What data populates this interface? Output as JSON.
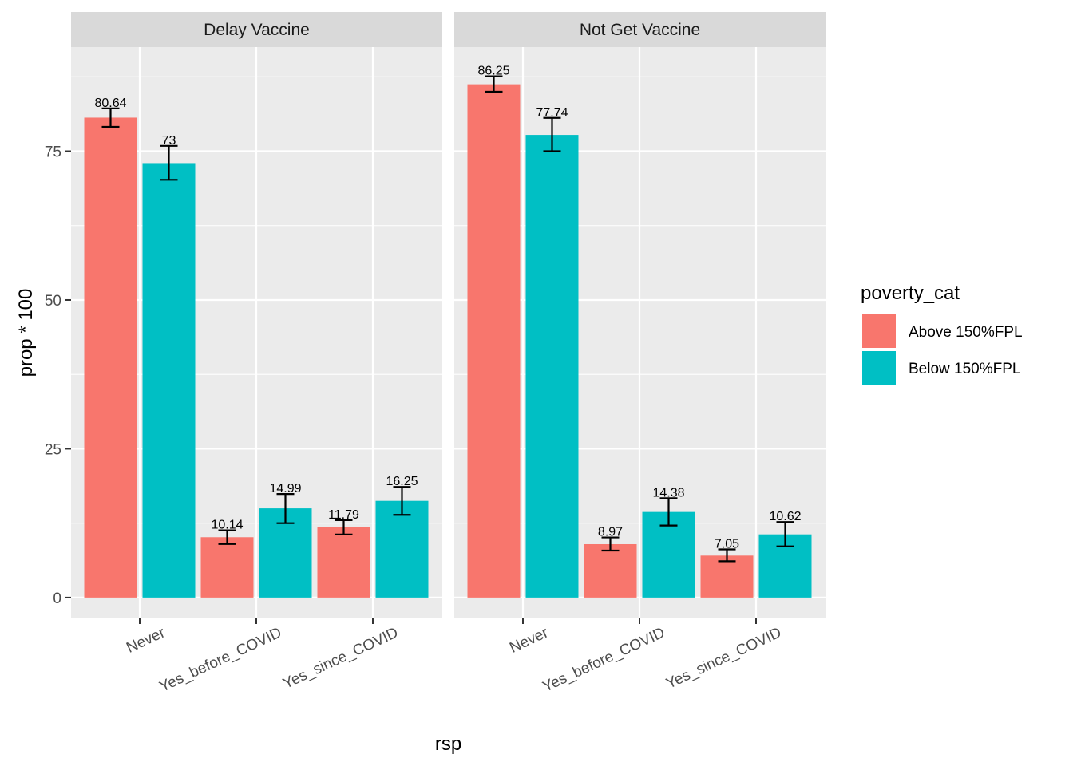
{
  "chart_data": {
    "type": "bar",
    "xlabel": "rsp",
    "ylabel": "prop * 100",
    "ylim": [
      -3.5,
      92.5
    ],
    "yticks": [
      0,
      25,
      50,
      75
    ],
    "categories": [
      "Never",
      "Yes_before_COVID",
      "Yes_since_COVID"
    ],
    "legend": {
      "title": "poverty_cat",
      "placement": "right",
      "entries": [
        {
          "name": "Above 150%FPL",
          "color": "#F8766D"
        },
        {
          "name": "Below 150%FPL",
          "color": "#00BFC4"
        }
      ]
    },
    "grid": true,
    "panels": [
      {
        "title": "Delay Vaccine",
        "series": [
          {
            "name": "Above 150%FPL",
            "values": [
              80.64,
              10.14,
              11.79
            ],
            "err_low": [
              79.1,
              9.0,
              10.6
            ],
            "err_high": [
              82.2,
              11.3,
              13.0
            ],
            "labels": [
              "80.64",
              "10.14",
              "11.79"
            ]
          },
          {
            "name": "Below 150%FPL",
            "values": [
              73,
              14.99,
              16.25
            ],
            "err_low": [
              70.2,
              12.5,
              13.9
            ],
            "err_high": [
              75.9,
              17.4,
              18.6
            ],
            "labels": [
              "73",
              "14.99",
              "16.25"
            ]
          }
        ]
      },
      {
        "title": "Not Get Vaccine",
        "series": [
          {
            "name": "Above 150%FPL",
            "values": [
              86.25,
              8.97,
              7.05
            ],
            "err_low": [
              85.0,
              7.9,
              6.1
            ],
            "err_high": [
              87.6,
              10.1,
              8.1
            ],
            "labels": [
              "86.25",
              "8.97",
              "7.05"
            ]
          },
          {
            "name": "Below 150%FPL",
            "values": [
              77.74,
              14.38,
              10.62
            ],
            "err_low": [
              75.0,
              12.1,
              8.6
            ],
            "err_high": [
              80.6,
              16.7,
              12.7
            ],
            "labels": [
              "77.74",
              "14.38",
              "10.62"
            ]
          }
        ]
      }
    ]
  }
}
